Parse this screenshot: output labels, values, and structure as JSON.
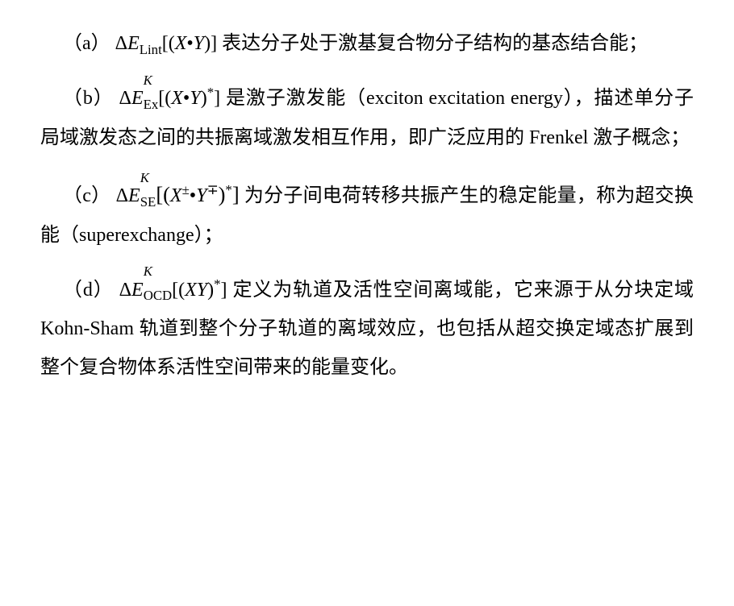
{
  "paragraphs": {
    "a": {
      "label": "（a）",
      "formula_prefix": "Δ",
      "formula_E": "E",
      "formula_sub": "Lint",
      "bracket_open": "[(",
      "X": "X",
      "bullet": "•",
      "Y": "Y",
      "bracket_close": ")]",
      "text": " 表达分子处于激基复合物分子结构的基态结合能；"
    },
    "b": {
      "label": "（b）",
      "formula_prefix": "Δ",
      "formula_E": "E",
      "formula_sub": "Ex",
      "formula_sup": "K",
      "bracket_open": "[(",
      "X": "X",
      "bullet": "•",
      "Y": "Y",
      "inner_close": ")",
      "star": "*",
      "bracket_close": "]",
      "text1": " 是激子激发能（",
      "eng": "exciton excitation energy",
      "text2": "），描述单分子局域激发态之间的共振离域激发相互作用，即广泛应用的 Frenkel 激子概念；"
    },
    "c": {
      "label": "（c）",
      "formula_prefix": "Δ",
      "formula_E": "E",
      "formula_sub": "SE",
      "formula_sup": "K",
      "big_open": "[",
      "paren_open": "(",
      "X": "X",
      "X_sup": "±",
      "bullet": "•",
      "Y": "Y",
      "Y_sup": "∓",
      "paren_close": ")",
      "star": "*",
      "big_close": "]",
      "text1": " 为分子间电荷转移共振产生的稳定能量，称为超交换能（",
      "eng": "superexchange",
      "text2": "）；"
    },
    "d": {
      "label": "（d）",
      "formula_prefix": "Δ",
      "formula_E": "E",
      "formula_sub": "OCD",
      "formula_sup": "K",
      "bracket_open": "[(",
      "XY": "XY",
      "inner_close": ")",
      "star": "*",
      "bracket_close": "]",
      "text": " 定义为轨道及活性空间离域能，它来源于从分块定域 Kohn-Sham 轨道到整个分子轨道的离域效应，也包括从超交换定域态扩展到整个复合物体系活性空间带来的能量变化。"
    }
  }
}
